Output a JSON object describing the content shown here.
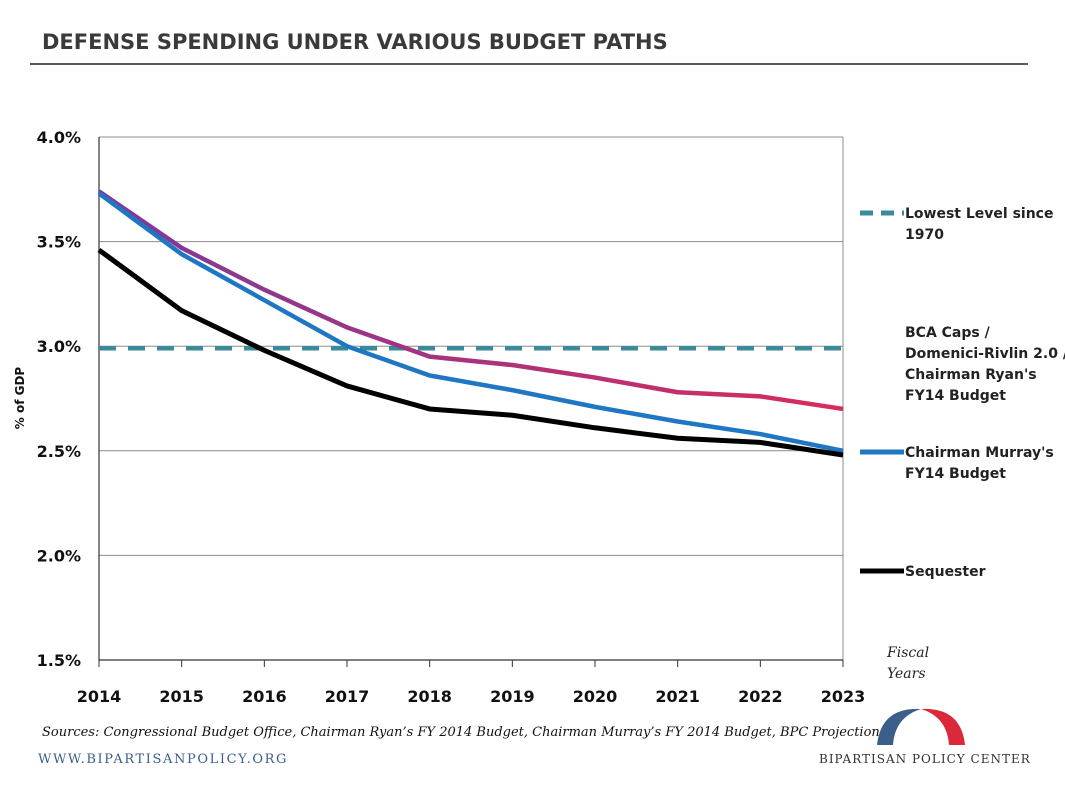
{
  "title": "DEFENSE SPENDING UNDER VARIOUS BUDGET PATHS",
  "footer": {
    "sources": "Sources: Congressional Budget Office, Chairman Ryan’s FY 2014 Budget, Chairman Murray’s FY 2014 Budget, BPC Projections",
    "website": "WWW.BIPARTISANPOLICY.ORG",
    "organization": "BIPARTISAN POLICY CENTER"
  },
  "logo": {
    "left_color": "#3b5f8a",
    "right_color": "#d9293a",
    "icon": "arc-logo-icon"
  },
  "chart_data": {
    "type": "line",
    "title": "DEFENSE SPENDING UNDER VARIOUS BUDGET PATHS",
    "ylabel": "% of GDP",
    "xlabel": [
      "Fiscal",
      "Years"
    ],
    "x": [
      2014,
      2015,
      2016,
      2017,
      2018,
      2019,
      2020,
      2021,
      2022,
      2023
    ],
    "ylim": [
      0.015,
      0.04
    ],
    "yticks": [
      0.015,
      0.02,
      0.025,
      0.03,
      0.035,
      0.04
    ],
    "ytick_labels": [
      "1.5%",
      "2.0%",
      "2.5%",
      "3.0%",
      "3.5%",
      "4.0%"
    ],
    "grid": "horizontal",
    "legend_position": "right",
    "series": [
      {
        "name": "Lowest Level since 1970",
        "legend_lines": [
          "Lowest Level since",
          "1970"
        ],
        "style": "dashed",
        "color": "#3a8a9a",
        "values": [
          0.0299,
          0.0299,
          0.0299,
          0.0299,
          0.0299,
          0.0299,
          0.0299,
          0.0299,
          0.0299,
          0.0299
        ]
      },
      {
        "name": "BCA Caps / Domenici-Rivlin 2.0 / Chairman Ryan's FY14 Budget",
        "legend_lines": [
          "BCA Caps /",
          "Domenici-Rivlin 2.0 /",
          "Chairman Ryan's",
          "FY14 Budget"
        ],
        "style": "gradient",
        "color": "#d92b5a",
        "color_secondary": "#7b3a9c",
        "values": [
          0.0374,
          0.0347,
          0.0327,
          0.0309,
          0.0295,
          0.0291,
          0.0285,
          0.0278,
          0.0276,
          0.027
        ]
      },
      {
        "name": "Chairman Murray's FY14 Budget",
        "legend_lines": [
          "Chairman Murray's",
          "FY14 Budget"
        ],
        "style": "solid",
        "color": "#1f77c4",
        "values": [
          0.0373,
          0.0344,
          0.0322,
          0.03,
          0.0286,
          0.0279,
          0.0271,
          0.0264,
          0.0258,
          0.025
        ]
      },
      {
        "name": "Sequester",
        "legend_lines": [
          "Sequester"
        ],
        "style": "solid",
        "color": "#000000",
        "values": [
          0.0346,
          0.0317,
          0.0298,
          0.0281,
          0.027,
          0.0267,
          0.0261,
          0.0256,
          0.0254,
          0.0248
        ]
      }
    ]
  }
}
